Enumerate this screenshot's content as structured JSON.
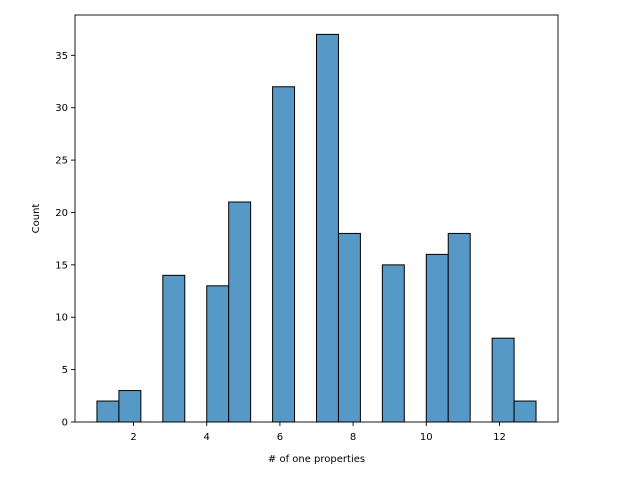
{
  "chart_data": {
    "type": "bar",
    "title": "",
    "xlabel": "# of one properties",
    "ylabel": "Count",
    "xlim": [
      0.4,
      13.6
    ],
    "ylim": [
      0,
      38.85
    ],
    "xticks": [
      2,
      4,
      6,
      8,
      10,
      12
    ],
    "yticks": [
      0,
      5,
      10,
      15,
      20,
      25,
      30,
      35
    ],
    "bin_width": 0.6,
    "bins": [
      {
        "x0": 1.0,
        "x1": 1.6,
        "count": 2
      },
      {
        "x0": 1.6,
        "x1": 2.2,
        "count": 3
      },
      {
        "x0": 2.2,
        "x1": 2.8,
        "count": 0
      },
      {
        "x0": 2.8,
        "x1": 3.4,
        "count": 14
      },
      {
        "x0": 3.4,
        "x1": 4.0,
        "count": 0
      },
      {
        "x0": 4.0,
        "x1": 4.6,
        "count": 13
      },
      {
        "x0": 4.6,
        "x1": 5.2,
        "count": 21
      },
      {
        "x0": 5.2,
        "x1": 5.8,
        "count": 0
      },
      {
        "x0": 5.8,
        "x1": 6.4,
        "count": 32
      },
      {
        "x0": 6.4,
        "x1": 7.0,
        "count": 0
      },
      {
        "x0": 7.0,
        "x1": 7.6,
        "count": 37
      },
      {
        "x0": 7.6,
        "x1": 8.2,
        "count": 18
      },
      {
        "x0": 8.2,
        "x1": 8.8,
        "count": 0
      },
      {
        "x0": 8.8,
        "x1": 9.4,
        "count": 15
      },
      {
        "x0": 9.4,
        "x1": 10.0,
        "count": 0
      },
      {
        "x0": 10.0,
        "x1": 10.6,
        "count": 16
      },
      {
        "x0": 10.6,
        "x1": 11.2,
        "count": 18
      },
      {
        "x0": 11.2,
        "x1": 11.8,
        "count": 0
      },
      {
        "x0": 11.8,
        "x1": 12.4,
        "count": 8
      },
      {
        "x0": 12.4,
        "x1": 13.0,
        "count": 2
      }
    ],
    "bar_color": "#5799c6",
    "edge_color": "#000000",
    "grid": false,
    "legend": "none"
  }
}
